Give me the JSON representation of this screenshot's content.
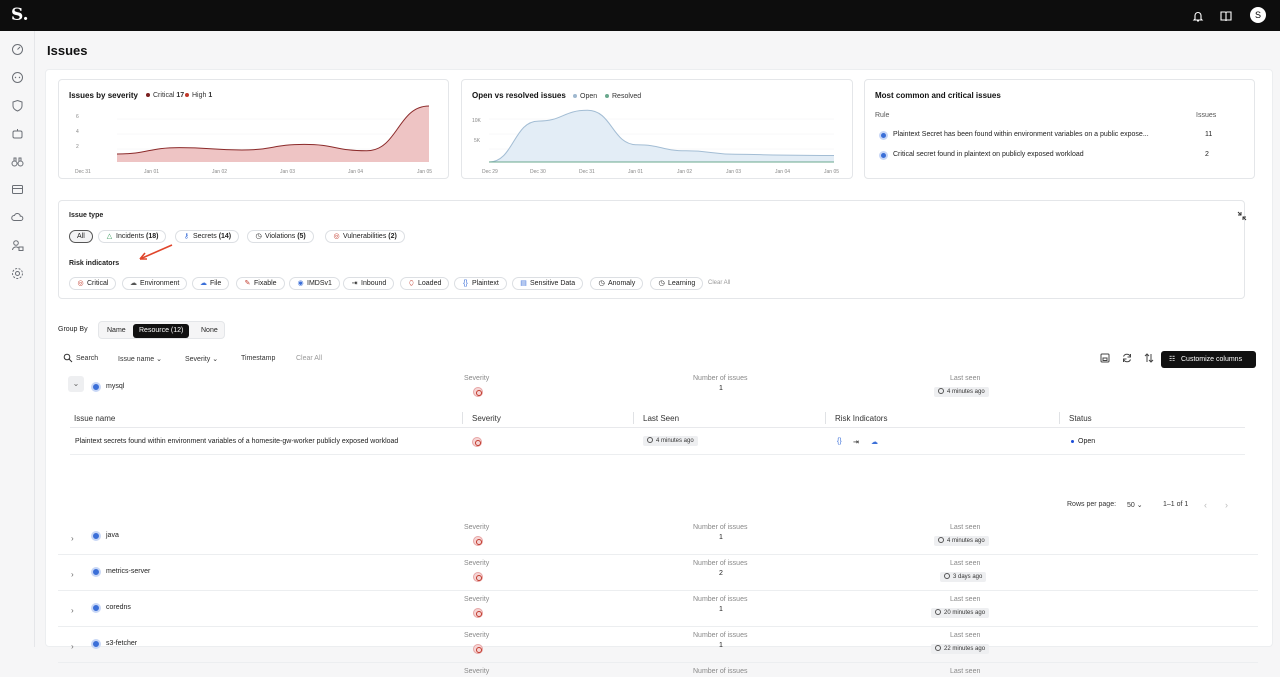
{
  "app": {
    "logo": "S.",
    "avatar_initial": "S"
  },
  "topbar": {
    "icons": [
      "bell-icon",
      "book-icon"
    ]
  },
  "sidebar": {
    "icons": [
      "dashboard-icon",
      "chat-icon",
      "shield-icon",
      "robot-icon",
      "binoculars-icon",
      "inventory-icon",
      "cloud-icon",
      "user-lock-icon",
      "settings-icon"
    ]
  },
  "page": {
    "title": "Issues"
  },
  "cards": {
    "severity": {
      "title": "Issues by severity",
      "legend": [
        {
          "label": "Critical",
          "count": "17",
          "color": "#7a1f1f"
        },
        {
          "label": "High",
          "count": "1",
          "color": "#c0392b"
        }
      ],
      "y_ticks": [
        "6",
        "4",
        "2"
      ],
      "x_ticks": [
        "Dec 31",
        "Jan 01",
        "Jan 02",
        "Jan 03",
        "Jan 04",
        "Jan 05"
      ]
    },
    "open_resolved": {
      "title": "Open vs resolved issues",
      "legend": [
        {
          "label": "Open",
          "color": "#9fb8cf"
        },
        {
          "label": "Resolved",
          "color": "#6aa88d"
        }
      ],
      "y_ticks": [
        "10K",
        "5K"
      ],
      "x_ticks": [
        "Dec 29",
        "Dec 30",
        "Dec 31",
        "Jan 01",
        "Jan 02",
        "Jan 03",
        "Jan 04",
        "Jan 05"
      ]
    },
    "common": {
      "title": "Most common and critical issues",
      "col_rule": "Rule",
      "col_issues": "Issues",
      "rows": [
        {
          "rule": "Plaintext Secret has been found within environment variables on a public expose...",
          "issues": "11"
        },
        {
          "rule": "Critical secret found in plaintext on publicly exposed workload",
          "issues": "2"
        }
      ]
    }
  },
  "chart_data": [
    {
      "type": "area",
      "title": "Issues by severity",
      "x": [
        "Dec 31",
        "Jan 01",
        "Jan 02",
        "Jan 03",
        "Jan 04",
        "Jan 05"
      ],
      "series": [
        {
          "name": "Critical",
          "values": [
            1,
            1.8,
            1.5,
            2.2,
            1.4,
            7
          ]
        }
      ],
      "ylim": [
        0,
        7
      ],
      "legend": "top-left"
    },
    {
      "type": "area",
      "title": "Open vs resolved issues",
      "x": [
        "Dec 29",
        "Dec 30",
        "Dec 31",
        "Jan 01",
        "Jan 02",
        "Jan 03",
        "Jan 04",
        "Jan 05"
      ],
      "series": [
        {
          "name": "Open",
          "values": [
            0,
            9500,
            12000,
            4000,
            2600,
            1800,
            1600,
            1500
          ]
        },
        {
          "name": "Resolved",
          "values": [
            0,
            0,
            0,
            0,
            0,
            0,
            0,
            0
          ]
        }
      ],
      "ylim": [
        0,
        13000
      ],
      "legend": "top-left"
    }
  ],
  "filters": {
    "issue_type_label": "Issue type",
    "issue_types": [
      {
        "label": "All",
        "count": "",
        "icon": ""
      },
      {
        "label": "Incidents",
        "count": "(18)",
        "icon": "triangle-icon"
      },
      {
        "label": "Secrets",
        "count": "(14)",
        "icon": "key-icon"
      },
      {
        "label": "Violations",
        "count": "(5)",
        "icon": "clock-icon"
      },
      {
        "label": "Vulnerabilities",
        "count": "(2)",
        "icon": "bug-icon"
      }
    ],
    "risk_label": "Risk indicators",
    "risks": [
      "Critical",
      "Environment",
      "File",
      "Fixable",
      "IMDSv1",
      "Inbound",
      "Loaded",
      "Plaintext",
      "Sensitive Data",
      "Anomaly",
      "Learning"
    ],
    "clear_all": "Clear All"
  },
  "groupby": {
    "label": "Group By",
    "options": [
      "Name",
      "Resource (12)",
      "None"
    ],
    "selected": "Resource (12)"
  },
  "toolbar": {
    "search": "Search",
    "issue_name": "Issue name",
    "severity": "Severity",
    "timestamp": "Timestamp",
    "clear_all": "Clear All",
    "customize": "Customize columns"
  },
  "groups": [
    {
      "name": "mysql",
      "sev_label": "Severity",
      "num_label": "Number of issues",
      "count": "1",
      "seen_label": "Last seen",
      "last_seen": "4 minutes ago",
      "expanded": true
    },
    {
      "name": "java",
      "sev_label": "Severity",
      "num_label": "Number of issues",
      "count": "1",
      "seen_label": "Last seen",
      "last_seen": "4 minutes ago"
    },
    {
      "name": "metrics-server",
      "sev_label": "Severity",
      "num_label": "Number of issues",
      "count": "2",
      "seen_label": "Last seen",
      "last_seen": "3 days ago"
    },
    {
      "name": "coredns",
      "sev_label": "Severity",
      "num_label": "Number of issues",
      "count": "1",
      "seen_label": "Last seen",
      "last_seen": "20 minutes ago"
    },
    {
      "name": "s3-fetcher",
      "sev_label": "Severity",
      "num_label": "Number of issues",
      "count": "1",
      "seen_label": "Last seen",
      "last_seen": "22 minutes ago"
    },
    {
      "name": "",
      "sev_label": "Severity",
      "num_label": "Number of issues",
      "count": "",
      "seen_label": "Last seen",
      "last_seen": ""
    }
  ],
  "inner_table": {
    "headers": [
      "Issue name",
      "Severity",
      "Last Seen",
      "Risk Indicators",
      "Status"
    ],
    "row": {
      "name": "Plaintext secrets found within environment variables of a homesite-gw-worker publicly exposed workload",
      "last_seen": "4 minutes ago",
      "status": "Open"
    },
    "rows_per_page_label": "Rows per page:",
    "rows_per_page": "50",
    "range": "1–1 of 1"
  }
}
